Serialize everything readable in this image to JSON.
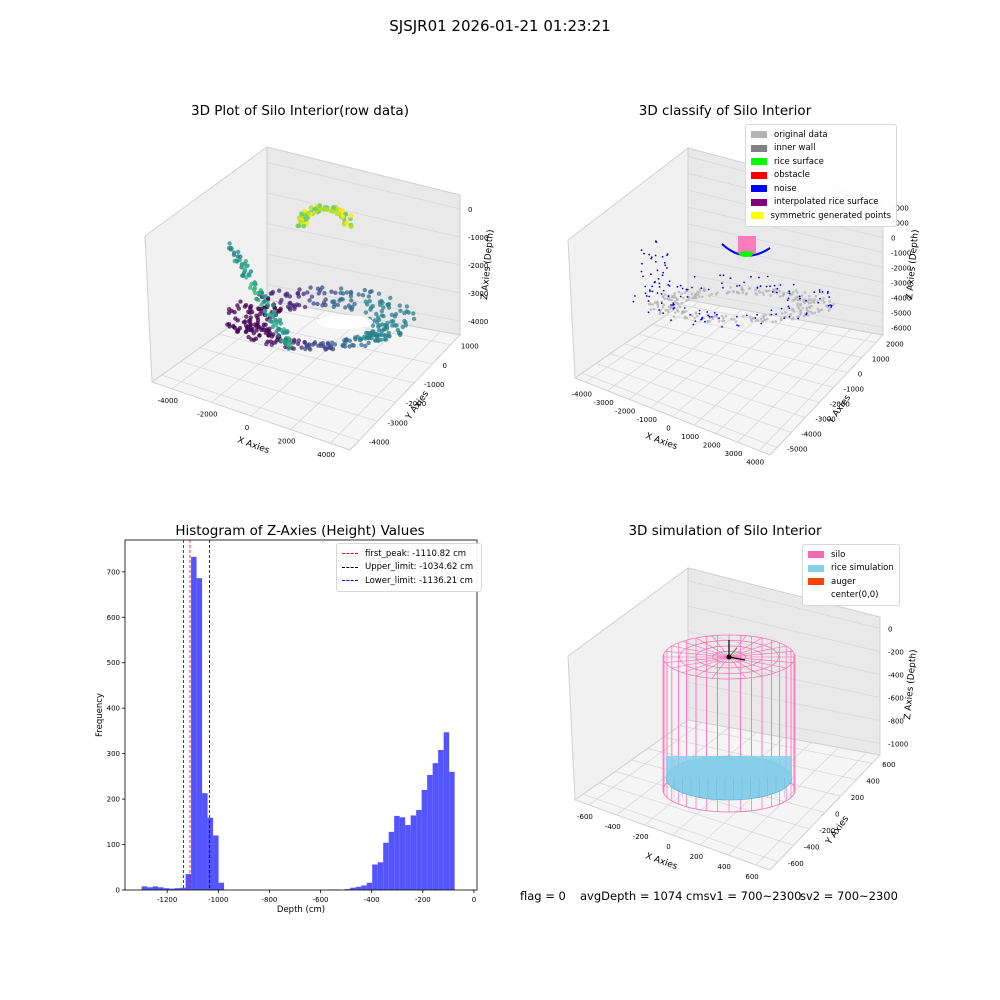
{
  "suptitle": "SJSJR01 2026-01-21 01:23:21",
  "footer": {
    "flag": "flag = 0",
    "avg": "avgDepth = 1074 cmsv1 = 700~2300",
    "sv2": "sv2 = 700~2300"
  },
  "colors": {
    "hist_bar": "#4b4bff",
    "first_peak": "#ff0000",
    "upper": "#000000",
    "lower": "#0000ff",
    "silo": "#ff69b4",
    "rice": "#87ceeb",
    "auger": "#ff4500"
  },
  "chart_data": [
    {
      "type": "scatter",
      "title": "3D Plot of Silo Interior(row data)",
      "xlabel": "X Axies",
      "ylabel": "Y Axies",
      "zlabel": "Z Axies (Depth)",
      "x_ticks": [
        "-4000",
        "-2000",
        "0",
        "2000",
        "4000"
      ],
      "y_ticks": [
        "1000",
        "0",
        "-1000",
        "-2000",
        "-3000",
        "-4000"
      ],
      "z_ticks": [
        "0",
        "-1000",
        "-2000",
        "-3000",
        "-4000"
      ],
      "colormap": "viridis"
    },
    {
      "type": "scatter",
      "title": "3D classify of Silo Interior",
      "xlabel": "X Axies",
      "ylabel": "Y Axies",
      "zlabel": "Z Axies (Depth)",
      "x_ticks": [
        "-4000",
        "-3000",
        "-2000",
        "-1000",
        "0",
        "1000",
        "2000",
        "3000",
        "4000"
      ],
      "y_ticks": [
        "2000",
        "1000",
        "0",
        "-1000",
        "-2000",
        "-3000",
        "-4000",
        "-5000"
      ],
      "z_ticks": [
        "2000",
        "1000",
        "0",
        "-1000",
        "-2000",
        "-3000",
        "-4000",
        "-5000",
        "-6000"
      ],
      "legend": [
        {
          "label": "original data",
          "color": "#b4b4b4"
        },
        {
          "label": "inner wall",
          "color": "#808080"
        },
        {
          "label": "rice surface",
          "color": "#00ff00"
        },
        {
          "label": "obstacle",
          "color": "#ff0000"
        },
        {
          "label": "noise",
          "color": "#0000ff"
        },
        {
          "label": "interpolated rice surface",
          "color": "#800080"
        },
        {
          "label": "symmetric generated points",
          "color": "#ffff00"
        }
      ]
    },
    {
      "type": "bar",
      "title": "Histogram of Z-Axies (Height) Values",
      "xlabel": "Depth (cm)",
      "ylabel": "Frequency",
      "xlim": [
        -1365,
        12
      ],
      "ylim": [
        0,
        770
      ],
      "x_ticks": [
        -1200,
        -1000,
        -800,
        -600,
        -400,
        -200,
        0
      ],
      "y_ticks": [
        0,
        100,
        200,
        300,
        400,
        500,
        600,
        700
      ],
      "bin_width": 21.5,
      "bins": [
        {
          "x": -1300,
          "value": 8
        },
        {
          "x": -1278.5,
          "value": 6
        },
        {
          "x": -1257,
          "value": 8
        },
        {
          "x": -1235.5,
          "value": 6
        },
        {
          "x": -1214,
          "value": 4
        },
        {
          "x": -1192.5,
          "value": 3
        },
        {
          "x": -1171,
          "value": 4
        },
        {
          "x": -1149.5,
          "value": 5
        },
        {
          "x": -1128,
          "value": 35
        },
        {
          "x": -1106.5,
          "value": 733
        },
        {
          "x": -1085,
          "value": 686
        },
        {
          "x": -1063.5,
          "value": 213
        },
        {
          "x": -1042,
          "value": 159
        },
        {
          "x": -1020.5,
          "value": 120
        },
        {
          "x": -999,
          "value": 16
        },
        {
          "x": -977.5,
          "value": 0
        },
        {
          "x": -570,
          "value": 1
        },
        {
          "x": -548.5,
          "value": 1
        },
        {
          "x": -505.5,
          "value": 2
        },
        {
          "x": -484,
          "value": 5
        },
        {
          "x": -462.5,
          "value": 7
        },
        {
          "x": -441,
          "value": 10
        },
        {
          "x": -419.5,
          "value": 16
        },
        {
          "x": -398,
          "value": 56
        },
        {
          "x": -376.5,
          "value": 61
        },
        {
          "x": -355,
          "value": 104
        },
        {
          "x": -333.5,
          "value": 128
        },
        {
          "x": -312,
          "value": 163
        },
        {
          "x": -290.5,
          "value": 160
        },
        {
          "x": -269,
          "value": 143
        },
        {
          "x": -247.5,
          "value": 164
        },
        {
          "x": -226,
          "value": 176
        },
        {
          "x": -204.5,
          "value": 220
        },
        {
          "x": -183,
          "value": 253
        },
        {
          "x": -161.5,
          "value": 279
        },
        {
          "x": -140,
          "value": 308
        },
        {
          "x": -118.5,
          "value": 347
        },
        {
          "x": -97,
          "value": 260
        }
      ],
      "lines": [
        {
          "name": "first_peak: -1110.82 cm",
          "x": -1110.82,
          "color": "#ff0000"
        },
        {
          "name": "Upper_limit: -1034.62 cm",
          "x": -1034.62,
          "color": "#000000"
        },
        {
          "name": "Lower_limit: -1136.21 cm",
          "x": -1136.21,
          "color": "#0000ff"
        }
      ]
    },
    {
      "type": "scatter",
      "title": "3D simulation of Silo Interior",
      "xlabel": "X Axies",
      "ylabel": "Y Axies",
      "zlabel": "Z Axies (Depth)",
      "x_ticks": [
        "-600",
        "-400",
        "-200",
        "0",
        "200",
        "400",
        "600"
      ],
      "y_ticks": [
        "600",
        "400",
        "200",
        "0",
        "-200",
        "-400",
        "-600"
      ],
      "z_ticks": [
        "0",
        "-200",
        "-400",
        "-600",
        "-800",
        "-1000"
      ],
      "legend": [
        {
          "label": "silo",
          "color": "#ff69b4"
        },
        {
          "label": "rice simulation",
          "color": "#87ceeb"
        },
        {
          "label": "auger",
          "color": "#ff4500"
        },
        {
          "label": "center(0,0)",
          "color": "#ffffff"
        }
      ]
    }
  ]
}
